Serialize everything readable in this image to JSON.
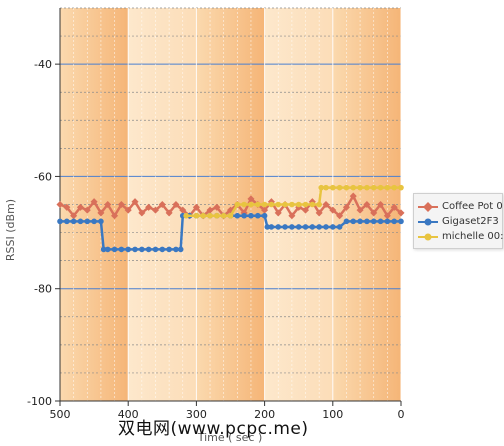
{
  "chart_data": {
    "type": "line",
    "xlabel": "Time ( sec )",
    "ylabel": "RSSI (dBm)",
    "xlim": [
      500,
      0
    ],
    "ylim": [
      -100,
      -30
    ],
    "x_ticks": [
      500,
      400,
      300,
      200,
      100,
      0
    ],
    "x_tick_labels": [
      "500",
      "400",
      "300",
      "200",
      "100",
      "0"
    ],
    "y_ticks": [
      -40,
      -60,
      -80,
      -100
    ],
    "y_tick_labels": [
      "-40",
      "-60",
      "-80",
      "-100"
    ],
    "grid": true,
    "legend_position": "right",
    "series": [
      {
        "name": "Coffee Pot 0",
        "color": "#d9705a",
        "marker": "diamond",
        "x": [
          500,
          490,
          480,
          470,
          460,
          450,
          440,
          430,
          420,
          410,
          400,
          390,
          380,
          370,
          360,
          350,
          340,
          330,
          320,
          310,
          300,
          290,
          280,
          270,
          260,
          250,
          240,
          230,
          220,
          210,
          200,
          190,
          180,
          170,
          160,
          150,
          140,
          130,
          120,
          110,
          100,
          90,
          80,
          70,
          60,
          50,
          40,
          30,
          20,
          10,
          0
        ],
        "y": [
          -65,
          -65.5,
          -67,
          -65.5,
          -66,
          -64.5,
          -66.5,
          -65,
          -67,
          -65,
          -66,
          -64.5,
          -66.5,
          -65.5,
          -66,
          -65,
          -66.5,
          -65,
          -66,
          -67,
          -65.5,
          -67,
          -66,
          -65.5,
          -67,
          -66,
          -65,
          -66.5,
          -64,
          -65,
          -66,
          -64.5,
          -66.5,
          -65,
          -67,
          -65.5,
          -66,
          -64.5,
          -66.5,
          -65,
          -66,
          -67,
          -65.5,
          -63.5,
          -66,
          -65,
          -66.5,
          -65,
          -67,
          -65.5,
          -66.5
        ]
      },
      {
        "name": "Gigaset2F3",
        "color": "#3a78c2",
        "marker": "circle",
        "x": [
          500,
          490,
          480,
          470,
          460,
          450,
          440,
          436,
          430,
          420,
          410,
          400,
          390,
          380,
          370,
          360,
          350,
          340,
          330,
          323,
          320,
          310,
          300,
          290,
          280,
          270,
          260,
          250,
          240,
          230,
          220,
          210,
          200,
          196,
          190,
          180,
          170,
          160,
          150,
          140,
          130,
          120,
          110,
          100,
          90,
          80,
          70,
          60,
          50,
          40,
          30,
          20,
          10,
          0
        ],
        "y": [
          -68,
          -68,
          -68,
          -68,
          -68,
          -68,
          -68,
          -73,
          -73,
          -73,
          -73,
          -73,
          -73,
          -73,
          -73,
          -73,
          -73,
          -73,
          -73,
          -73,
          -67,
          -67,
          -67,
          -67,
          -67,
          -67,
          -67,
          -67,
          -67,
          -67,
          -67,
          -67,
          -67,
          -69,
          -69,
          -69,
          -69,
          -69,
          -69,
          -69,
          -69,
          -69,
          -69,
          -69,
          -69,
          -68,
          -68,
          -68,
          -68,
          -68,
          -68,
          -68,
          -68,
          -68
        ]
      },
      {
        "name": "michelle 00:",
        "color": "#e8c440",
        "marker": "circle",
        "x": [
          315,
          300,
          290,
          280,
          270,
          260,
          250,
          240,
          230,
          220,
          210,
          200,
          190,
          180,
          170,
          160,
          150,
          140,
          130,
          120,
          117,
          110,
          100,
          90,
          80,
          70,
          60,
          50,
          40,
          30,
          20,
          10,
          0
        ],
        "y": [
          -67,
          -67,
          -67,
          -67,
          -67,
          -67,
          -67,
          -65,
          -65,
          -65,
          -65,
          -65,
          -65,
          -65,
          -65,
          -65,
          -65,
          -65,
          -65,
          -65,
          -62,
          -62,
          -62,
          -62,
          -62,
          -62,
          -62,
          -62,
          -62,
          -62,
          -62,
          -62,
          -62
        ]
      }
    ]
  },
  "watermark": "双电网(www.pcpc.me)"
}
